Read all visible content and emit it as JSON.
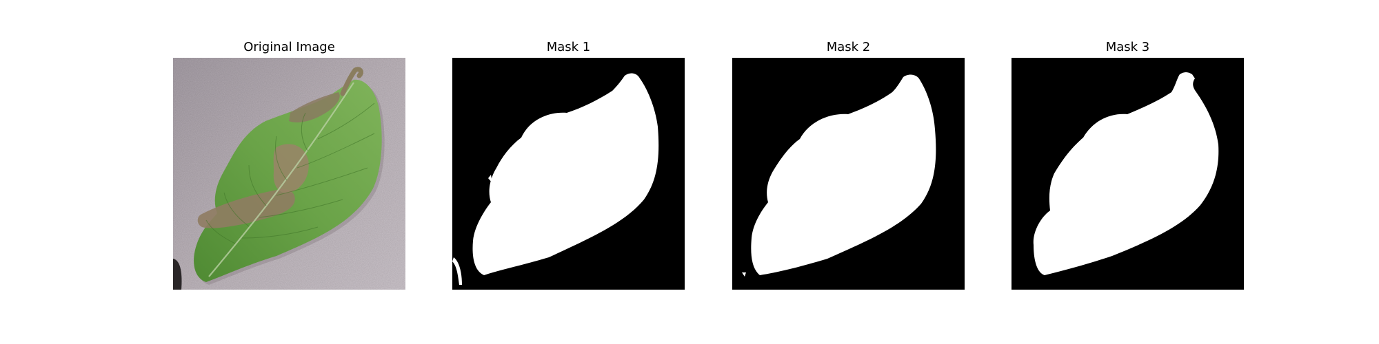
{
  "figure": {
    "panels": [
      {
        "title": "Original Image",
        "content": "photo-of-potato-leaf-with-blight-lesion"
      },
      {
        "title": "Mask 1",
        "content": "binary-leaf-mask"
      },
      {
        "title": "Mask 2",
        "content": "binary-leaf-mask"
      },
      {
        "title": "Mask 3",
        "content": "binary-leaf-mask"
      }
    ]
  },
  "colors": {
    "mask_foreground": "#ffffff",
    "mask_background": "#000000",
    "leaf_green": "#5e9a3c",
    "lesion_brown": "#8c7a60",
    "ground_gray": "#b6adb3"
  }
}
